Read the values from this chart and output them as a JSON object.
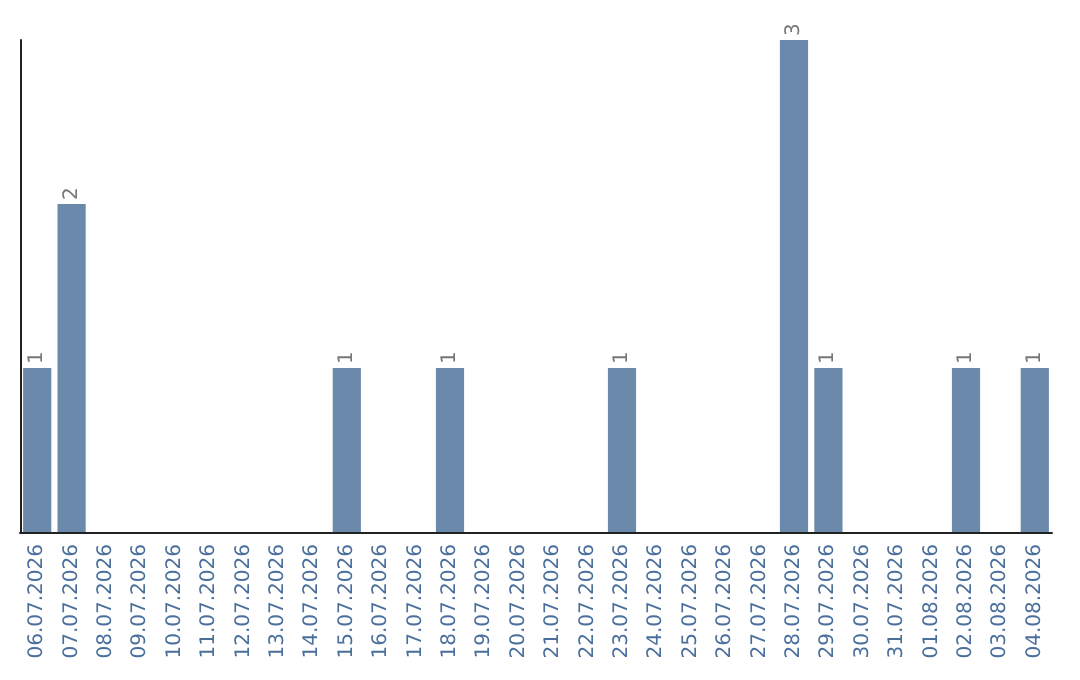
{
  "chart_data": {
    "type": "bar",
    "categories": [
      "06.07.2026",
      "07.07.2026",
      "08.07.2026",
      "09.07.2026",
      "10.07.2026",
      "11.07.2026",
      "12.07.2026",
      "13.07.2026",
      "14.07.2026",
      "15.07.2026",
      "16.07.2026",
      "17.07.2026",
      "18.07.2026",
      "19.07.2026",
      "20.07.2026",
      "21.07.2026",
      "22.07.2026",
      "23.07.2026",
      "24.07.2026",
      "25.07.2026",
      "26.07.2026",
      "27.07.2026",
      "28.07.2026",
      "29.07.2026",
      "30.07.2026",
      "31.07.2026",
      "01.08.2026",
      "02.08.2026",
      "03.08.2026",
      "04.08.2026"
    ],
    "values": [
      1,
      2,
      0,
      0,
      0,
      0,
      0,
      0,
      0,
      1,
      0,
      0,
      1,
      0,
      0,
      0,
      0,
      1,
      0,
      0,
      0,
      0,
      3,
      1,
      0,
      0,
      0,
      1,
      0,
      1
    ],
    "value_labels": [
      "1",
      "2",
      null,
      null,
      null,
      null,
      null,
      null,
      null,
      "1",
      null,
      null,
      "1",
      null,
      null,
      null,
      null,
      "1",
      null,
      null,
      null,
      null,
      "3",
      "1",
      null,
      null,
      null,
      "1",
      null,
      "1"
    ],
    "color": "#6b8aab",
    "tick_labels": "x",
    "grid": false
  }
}
